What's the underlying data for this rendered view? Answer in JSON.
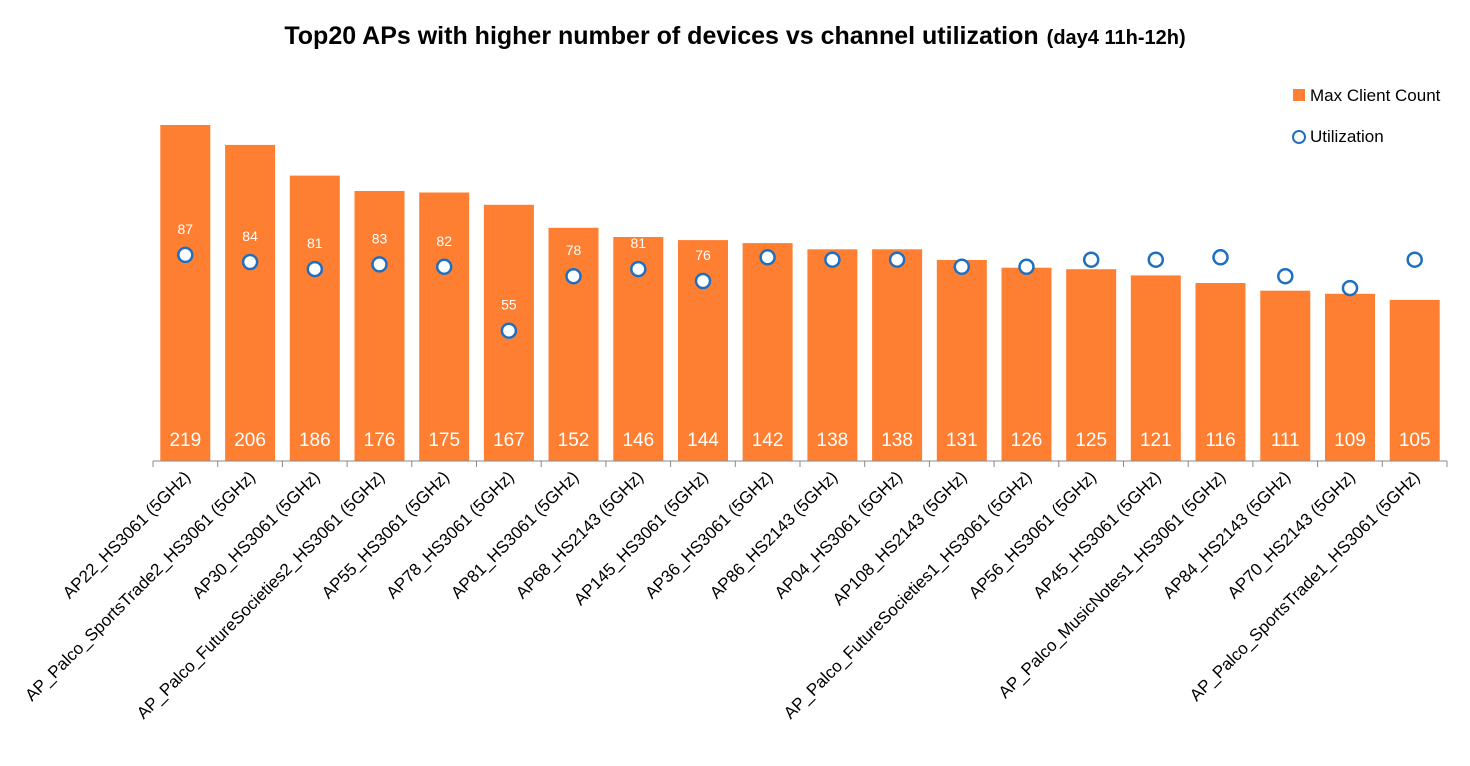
{
  "chart_data": {
    "type": "bar",
    "title": "Top20 APs with higher number of devices vs channel utilization",
    "subtitle": "(day4 11h-12h)",
    "categories": [
      "AP22_HS3061 (5GHz)",
      "AP_Palco_SportsTrade2_HS3061 (5GHz)",
      "AP30_HS3061 (5GHz)",
      "AP_Palco_FutureSocieties2_HS3061 (5GHz)",
      "AP55_HS3061 (5GHz)",
      "AP78_HS3061 (5GHz)",
      "AP81_HS3061 (5GHz)",
      "AP68_HS2143 (5GHz)",
      "AP145_HS3061 (5GHz)",
      "AP36_HS3061 (5GHz)",
      "AP86_HS2143 (5GHz)",
      "AP04_HS3061 (5GHz)",
      "AP108_HS2143 (5GHz)",
      "AP_Palco_FutureSocieties1_HS3061 (5GHz)",
      "AP56_HS3061 (5GHz)",
      "AP45_HS3061 (5GHz)",
      "AP_Palco_MusicNotes1_HS3061 (5GHz)",
      "AP84_HS2143 (5GHz)",
      "AP70_HS2143 (5GHz)",
      "AP_Palco_SportsTrade1_HS3061 (5GHz)"
    ],
    "series": [
      {
        "name": "Max Client Count",
        "type": "bar",
        "color": "#FF7F32",
        "values": [
          219,
          206,
          186,
          176,
          175,
          167,
          152,
          146,
          144,
          142,
          138,
          138,
          131,
          126,
          125,
          121,
          116,
          111,
          109,
          105
        ]
      },
      {
        "name": "Utilization",
        "type": "scatter",
        "color": "#1F6FC0",
        "values": [
          87,
          84,
          81,
          83,
          82,
          55,
          78,
          81,
          76,
          86,
          85,
          85,
          82,
          82,
          85,
          85,
          86,
          78,
          73,
          85
        ]
      }
    ],
    "legend": [
      "Max Client Count",
      "Utilization"
    ],
    "legend_position": "top-right",
    "xlabel": "",
    "ylabel": "",
    "ylim_bars": [
      0,
      219
    ],
    "ylim_util": [
      0,
      160
    ],
    "grid": false
  }
}
